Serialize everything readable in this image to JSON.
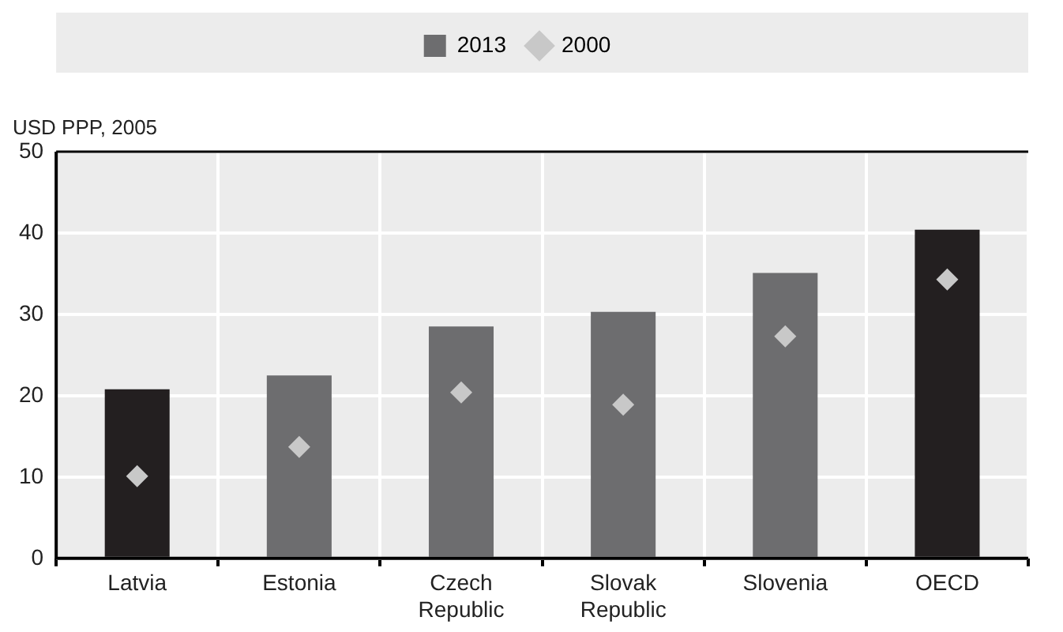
{
  "chart_data": {
    "type": "bar",
    "ylabel": "USD PPP, 2005",
    "categories": [
      "Latvia",
      "Estonia",
      "Czech Republic",
      "Slovak Republic",
      "Slovenia",
      "OECD"
    ],
    "series": [
      {
        "name": "2013",
        "color": "#6d6d6f",
        "colors": [
          "#231f20",
          "#6d6d6f",
          "#6d6d6f",
          "#6d6d6f",
          "#6d6d6f",
          "#231f20"
        ],
        "values": [
          20.8,
          22.5,
          28.5,
          30.3,
          35.1,
          40.4
        ]
      },
      {
        "name": "2000",
        "type": "scatter",
        "marker": "diamond",
        "color": "#c8c8c8",
        "values": [
          10.1,
          13.7,
          20.4,
          18.9,
          27.3,
          34.3
        ]
      }
    ],
    "ylim": [
      0,
      50
    ],
    "yticks": [
      0,
      10,
      20,
      30,
      40,
      50
    ],
    "grid": true,
    "legend": "top"
  }
}
